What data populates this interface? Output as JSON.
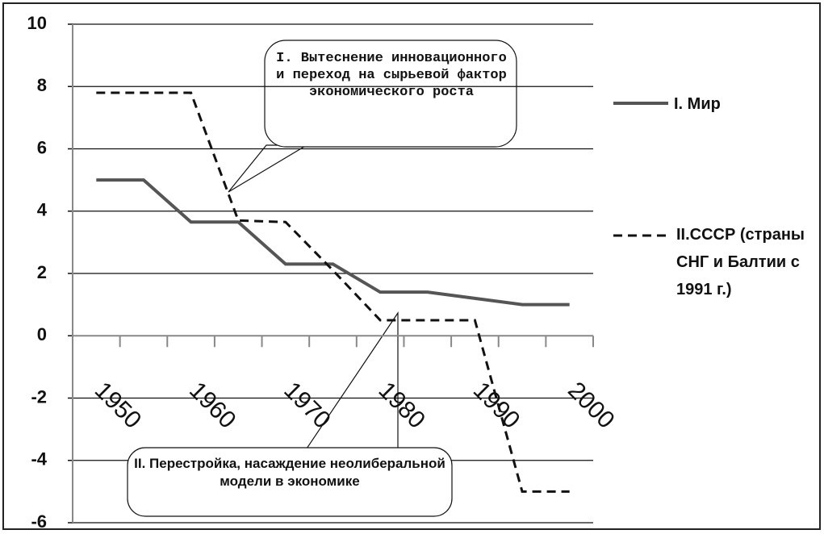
{
  "chart_data": {
    "type": "line",
    "categories": [
      "1950",
      null,
      "1960",
      null,
      "1970",
      null,
      "1980",
      null,
      "1990",
      null,
      "2000"
    ],
    "series": [
      {
        "name": "I. Мир",
        "color": "#555555",
        "values": [
          5,
          5,
          3.65,
          3.65,
          2.3,
          2.3,
          1.4,
          1.4,
          1.2,
          1.0,
          1.0
        ]
      },
      {
        "name": "II.СССР (страны СНГ и Балтии с 1991 г.)",
        "color": "#111111",
        "dashed": true,
        "values": [
          7.8,
          7.8,
          7.8,
          3.7,
          3.65,
          2.1,
          0.5,
          0.5,
          0.5,
          -5,
          -5
        ]
      }
    ],
    "ylim": [
      -6,
      10
    ],
    "yticks": [
      -6,
      -4,
      -2,
      0,
      2,
      4,
      6,
      8,
      10
    ],
    "grid": true,
    "annotations": [
      "I. Вытеснение инновационного и переход на сырьевой фактор экономического роста",
      "II. Перестройка, насаждение неолиберальной модели в экономике"
    ]
  }
}
